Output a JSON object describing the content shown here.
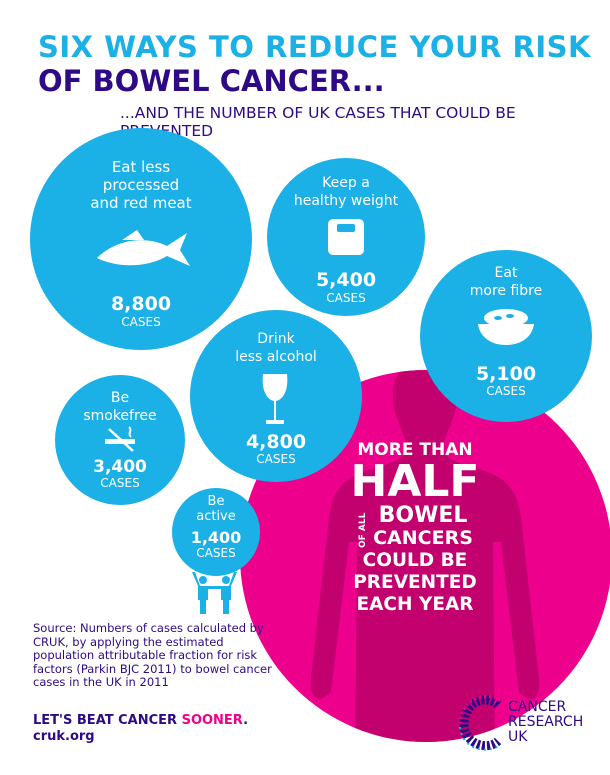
{
  "title": {
    "line1": "SIX WAYS TO REDUCE YOUR RISK",
    "line2": "OF BOWEL CANCER..."
  },
  "subtitle": "...AND THE NUMBER OF UK CASES THAT COULD BE PREVENTED",
  "colors": {
    "cyan": "#1bb0e6",
    "purple": "#2e0a85",
    "magenta": "#ec008c",
    "body": "#c2006e"
  },
  "ways": [
    {
      "label_lines": [
        "Eat less",
        "processed",
        "and red meat"
      ],
      "cases": "8,800",
      "unit": "CASES",
      "icon": "fish-icon"
    },
    {
      "label_lines": [
        "Keep a",
        "healthy weight"
      ],
      "cases": "5,400",
      "unit": "CASES",
      "icon": "scale-icon"
    },
    {
      "label_lines": [
        "Eat",
        "more fibre"
      ],
      "cases": "5,100",
      "unit": "CASES",
      "icon": "bowl-icon"
    },
    {
      "label_lines": [
        "Drink",
        "less alcohol"
      ],
      "cases": "4,800",
      "unit": "CASES",
      "icon": "wine-glass-icon"
    },
    {
      "label_lines": [
        "Be",
        "smokefree"
      ],
      "cases": "3,400",
      "unit": "CASES",
      "icon": "no-smoking-icon"
    },
    {
      "label_lines": [
        "Be",
        "active"
      ],
      "cases": "1,400",
      "unit": "CASES",
      "icon": "people-cheering-icon"
    }
  ],
  "headline": {
    "l1": "MORE THAN",
    "l2": "HALF",
    "of_all": "OF ALL",
    "l3": "BOWEL",
    "l4": "CANCERS",
    "l5": "COULD BE",
    "l6": "PREVENTED",
    "l7": "EACH YEAR"
  },
  "source": "Source: Numbers of cases calculated by CRUK, by applying the estimated population attributable fraction for risk factors (Parkin BJC 2011) to bowel cancer cases in the UK in 2011",
  "footer": {
    "slogan": "LET'S BEAT CANCER ",
    "slogan_accent": "SOONER",
    "period": ".",
    "url": "cruk.org"
  },
  "logo": {
    "l1": "CANCER",
    "l2": "RESEARCH",
    "l3": "UK"
  }
}
